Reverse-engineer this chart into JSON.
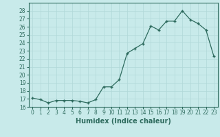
{
  "x": [
    0,
    1,
    2,
    3,
    4,
    5,
    6,
    7,
    8,
    9,
    10,
    11,
    12,
    13,
    14,
    15,
    16,
    17,
    18,
    19,
    20,
    21,
    22,
    23
  ],
  "y": [
    17.1,
    16.9,
    16.5,
    16.8,
    16.8,
    16.8,
    16.7,
    16.5,
    16.9,
    18.5,
    18.5,
    19.4,
    22.7,
    23.3,
    23.9,
    26.1,
    25.6,
    26.7,
    26.7,
    28.0,
    26.9,
    26.4,
    25.6,
    22.3
  ],
  "line_color": "#2e6b5e",
  "bg_color": "#c8eaea",
  "grid_color": "#b0d8d8",
  "xlabel": "Humidex (Indice chaleur)",
  "ylim": [
    16,
    29
  ],
  "xlim": [
    -0.5,
    23.5
  ],
  "yticks": [
    16,
    17,
    18,
    19,
    20,
    21,
    22,
    23,
    24,
    25,
    26,
    27,
    28
  ],
  "xticks": [
    0,
    1,
    2,
    3,
    4,
    5,
    6,
    7,
    8,
    9,
    10,
    11,
    12,
    13,
    14,
    15,
    16,
    17,
    18,
    19,
    20,
    21,
    22,
    23
  ],
  "tick_fontsize": 5.5,
  "xlabel_fontsize": 7.0
}
